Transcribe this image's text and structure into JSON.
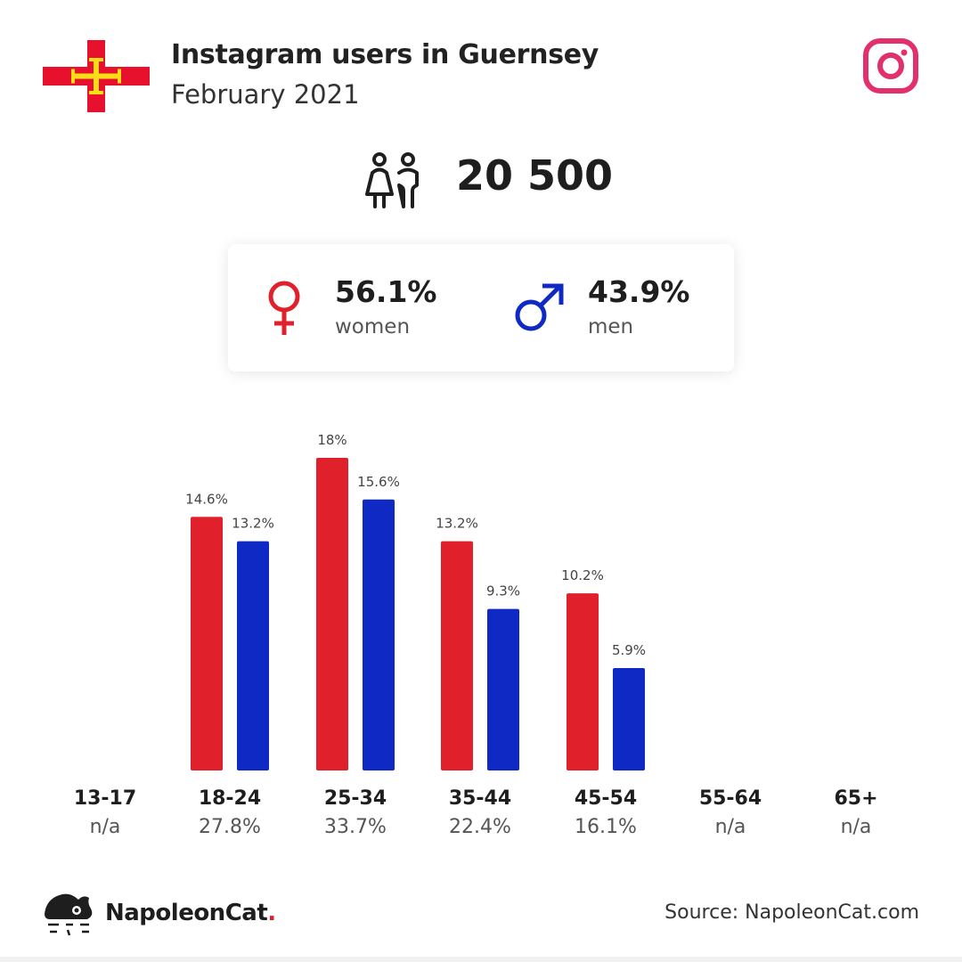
{
  "header": {
    "title": "Instagram users in Guernsey",
    "subtitle": "February 2021",
    "flag_icon": "guernsey-flag-icon",
    "platform_icon": "instagram-icon"
  },
  "total": {
    "icon": "users-icon",
    "value": "20 500"
  },
  "gender": {
    "women": {
      "value": "56.1%",
      "label": "women",
      "icon": "female-symbol-icon",
      "color": "#e0202a"
    },
    "men": {
      "value": "43.9%",
      "label": "men",
      "icon": "male-symbol-icon",
      "color": "#0f2ac4"
    }
  },
  "chart_data": {
    "type": "bar",
    "categories": [
      "13-17",
      "18-24",
      "25-34",
      "35-44",
      "45-54",
      "55-64",
      "65+"
    ],
    "category_totals": [
      "n/a",
      "27.8%",
      "33.7%",
      "22.4%",
      "16.1%",
      "n/a",
      "n/a"
    ],
    "series": [
      {
        "color": "#e0202a",
        "values": [
          null,
          14.6,
          18,
          13.2,
          10.2,
          null,
          null
        ],
        "labels": [
          "",
          "14.6%",
          "18%",
          "13.2%",
          "10.2%",
          "",
          ""
        ]
      },
      {
        "color": "#0f2ac4",
        "values": [
          null,
          13.2,
          15.6,
          9.3,
          5.9,
          null,
          null
        ],
        "labels": [
          "",
          "13.2%",
          "15.6%",
          "9.3%",
          "5.9%",
          "",
          ""
        ]
      }
    ],
    "ylim": [
      0,
      18
    ],
    "grid": false,
    "legend": "none"
  },
  "footer": {
    "brand": "NapoleonCat",
    "brand_dot": ".",
    "brand_icon": "napoleoncat-logo-icon",
    "source": "Source: NapoleonCat.com"
  }
}
